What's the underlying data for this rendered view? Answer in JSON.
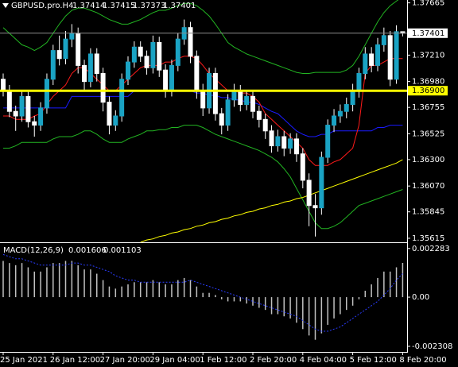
{
  "chart_data": [
    {
      "type": "candlestick",
      "title": "GBPUSD.pro.H4",
      "categories": [
        "25 Jan 2021",
        null,
        null,
        null,
        null,
        null,
        null,
        null,
        "26 Jan 12:00",
        null,
        null,
        null,
        null,
        null,
        null,
        null,
        "27 Jan 20:00",
        null,
        null,
        null,
        null,
        null,
        null,
        null,
        "29 Jan 04:00",
        null,
        null,
        null,
        null,
        null,
        null,
        null,
        "1 Feb 12:00",
        null,
        null,
        null,
        null,
        null,
        null,
        null,
        "2 Feb 20:00",
        null,
        null,
        null,
        null,
        null,
        null,
        null,
        "4 Feb 04:00",
        null,
        null,
        null,
        null,
        null,
        null,
        null,
        "5 Feb 12:00",
        null,
        null,
        null,
        null,
        null,
        null,
        null,
        "8 Feb 20:00"
      ],
      "open": [
        1.37,
        1.369,
        1.3672,
        1.3668,
        1.3685,
        1.3663,
        1.366,
        1.3675,
        1.37,
        1.3725,
        1.3718,
        1.3735,
        1.374,
        1.3712,
        1.3698,
        1.3722,
        1.3705,
        1.368,
        1.366,
        1.3668,
        1.37,
        1.3715,
        1.3728,
        1.372,
        1.371,
        1.3732,
        1.3708,
        1.369,
        1.3712,
        1.3735,
        1.3745,
        1.372,
        1.369,
        1.3675,
        1.3705,
        1.367,
        1.366,
        1.3682,
        1.369,
        1.3678,
        1.3685,
        1.3672,
        1.3665,
        1.3655,
        1.3642,
        1.365,
        1.364,
        1.3648,
        1.3635,
        1.3612,
        1.359,
        1.3588,
        1.3632,
        1.366,
        1.3668,
        1.3672,
        1.3678,
        1.369,
        1.3705,
        1.3722,
        1.3712,
        1.373,
        1.3738,
        1.37,
        1.37414
      ],
      "high": [
        1.3705,
        1.3695,
        1.3677,
        1.369,
        1.369,
        1.3668,
        1.368,
        1.3705,
        1.373,
        1.3738,
        1.3742,
        1.3748,
        1.3745,
        1.3717,
        1.3727,
        1.3727,
        1.371,
        1.3685,
        1.3673,
        1.3705,
        1.372,
        1.3733,
        1.3733,
        1.3725,
        1.3738,
        1.3737,
        1.3713,
        1.3717,
        1.374,
        1.3752,
        1.375,
        1.3725,
        1.3696,
        1.371,
        1.371,
        1.3675,
        1.3687,
        1.3696,
        1.3695,
        1.369,
        1.369,
        1.3677,
        1.367,
        1.366,
        1.3656,
        1.3655,
        1.3653,
        1.3653,
        1.364,
        1.3618,
        1.36,
        1.3637,
        1.3665,
        1.3674,
        1.3678,
        1.3684,
        1.3696,
        1.371,
        1.3728,
        1.3728,
        1.3736,
        1.3745,
        1.3742,
        1.3747,
        1.37415
      ],
      "low": [
        1.3685,
        1.3667,
        1.3655,
        1.3663,
        1.3658,
        1.365,
        1.3655,
        1.367,
        1.3695,
        1.3712,
        1.3713,
        1.3728,
        1.3705,
        1.369,
        1.3693,
        1.3698,
        1.3672,
        1.3652,
        1.3655,
        1.3663,
        1.3695,
        1.371,
        1.3715,
        1.3704,
        1.3705,
        1.3702,
        1.3684,
        1.3685,
        1.3707,
        1.373,
        1.3714,
        1.3683,
        1.3668,
        1.367,
        1.3664,
        1.3652,
        1.3655,
        1.3676,
        1.3672,
        1.3673,
        1.3666,
        1.3658,
        1.3648,
        1.3636,
        1.3637,
        1.3633,
        1.3635,
        1.3628,
        1.3605,
        1.3572,
        1.3563,
        1.3582,
        1.3627,
        1.3654,
        1.3662,
        1.3666,
        1.3672,
        1.3684,
        1.37,
        1.3706,
        1.3707,
        1.3724,
        1.3694,
        1.3696,
        1.37373
      ],
      "close": [
        1.369,
        1.3672,
        1.3668,
        1.3685,
        1.3663,
        1.366,
        1.3675,
        1.37,
        1.3725,
        1.3718,
        1.3735,
        1.374,
        1.3712,
        1.3698,
        1.3722,
        1.3705,
        1.368,
        1.366,
        1.3668,
        1.37,
        1.3715,
        1.3728,
        1.372,
        1.371,
        1.3732,
        1.3708,
        1.369,
        1.3712,
        1.3735,
        1.3745,
        1.372,
        1.369,
        1.3675,
        1.3705,
        1.367,
        1.366,
        1.3682,
        1.369,
        1.3678,
        1.3685,
        1.3672,
        1.3665,
        1.3655,
        1.3642,
        1.365,
        1.364,
        1.3648,
        1.3635,
        1.3612,
        1.359,
        1.3588,
        1.3632,
        1.366,
        1.3668,
        1.3672,
        1.3678,
        1.369,
        1.3705,
        1.3722,
        1.3712,
        1.373,
        1.3738,
        1.37,
        1.37414,
        1.37401
      ],
      "bull_color": "#1aa3c4",
      "bear_color": "#ffffff",
      "series": [
        {
          "color": "#22b422",
          "values": [
            1.3745,
            1.374,
            1.3735,
            1.373,
            1.3728,
            1.3725,
            1.3728,
            1.3732,
            1.374,
            1.3748,
            1.3755,
            1.376,
            1.3762,
            1.3762,
            1.376,
            1.3758,
            1.3755,
            1.3752,
            1.375,
            1.3748,
            1.3748,
            1.375,
            1.3752,
            1.3755,
            1.3758,
            1.376,
            1.376,
            1.3762,
            1.3764,
            1.3766,
            1.3766,
            1.3764,
            1.376,
            1.3755,
            1.3748,
            1.374,
            1.3732,
            1.3728,
            1.3725,
            1.3722,
            1.372,
            1.3718,
            1.3716,
            1.3714,
            1.3712,
            1.371,
            1.3708,
            1.3706,
            1.3705,
            1.3705,
            1.3706,
            1.3706,
            1.3706,
            1.3706,
            1.3706,
            1.3708,
            1.3712,
            1.372,
            1.373,
            1.374,
            1.375,
            1.3758,
            1.3764,
            1.3768,
            1.3772
          ]
        },
        {
          "color": "#22b422",
          "values": [
            1.364,
            1.364,
            1.3642,
            1.3645,
            1.3645,
            1.3645,
            1.3645,
            1.3645,
            1.3648,
            1.365,
            1.365,
            1.365,
            1.3652,
            1.3655,
            1.3655,
            1.3652,
            1.3648,
            1.3645,
            1.3645,
            1.3645,
            1.3648,
            1.365,
            1.3652,
            1.3655,
            1.3655,
            1.3656,
            1.3656,
            1.3658,
            1.3658,
            1.366,
            1.366,
            1.366,
            1.3658,
            1.3655,
            1.3652,
            1.365,
            1.3648,
            1.3646,
            1.3644,
            1.3642,
            1.364,
            1.3638,
            1.3635,
            1.3632,
            1.3628,
            1.3622,
            1.3615,
            1.3605,
            1.3595,
            1.3585,
            1.3575,
            1.357,
            1.357,
            1.3572,
            1.3575,
            1.358,
            1.3585,
            1.359,
            1.3592,
            1.3594,
            1.3596,
            1.3598,
            1.36,
            1.3602,
            1.3604
          ]
        },
        {
          "color": "#ffff00",
          "values": [
            null,
            null,
            null,
            null,
            null,
            null,
            null,
            null,
            null,
            null,
            null,
            null,
            null,
            null,
            null,
            null,
            null,
            null,
            null,
            null,
            null,
            null,
            1.3558,
            1.356,
            1.3561,
            1.3563,
            1.3564,
            1.3566,
            1.3567,
            1.3569,
            1.357,
            1.3572,
            1.3573,
            1.3575,
            1.3576,
            1.3578,
            1.3579,
            1.3581,
            1.3582,
            1.3584,
            1.3585,
            1.3587,
            1.3588,
            1.359,
            1.3591,
            1.3593,
            1.3594,
            1.3596,
            1.3597,
            1.3599,
            1.3601,
            1.3603,
            1.3605,
            1.3607,
            1.3609,
            1.3611,
            1.3613,
            1.3615,
            1.3617,
            1.3619,
            1.3621,
            1.3623,
            1.3625,
            1.3627,
            1.363
          ]
        },
        {
          "color": "#1a1aff",
          "values": [
            1.3675,
            1.3675,
            1.3675,
            1.3675,
            1.3675,
            1.3675,
            1.3675,
            1.3675,
            1.3675,
            1.3675,
            1.3675,
            1.3685,
            1.3685,
            1.3685,
            1.3685,
            1.3685,
            1.3685,
            1.3685,
            1.3685,
            1.3685,
            1.3685,
            1.369,
            1.369,
            1.369,
            1.369,
            1.369,
            1.369,
            1.369,
            1.369,
            1.369,
            1.369,
            1.3688,
            1.3688,
            1.3686,
            1.3686,
            1.3684,
            1.3684,
            1.3682,
            1.3682,
            1.368,
            1.368,
            1.3678,
            1.3675,
            1.3672,
            1.367,
            1.3665,
            1.366,
            1.3655,
            1.3652,
            1.365,
            1.365,
            1.3652,
            1.3652,
            1.3655,
            1.3655,
            1.3655,
            1.3655,
            1.3655,
            1.3655,
            1.3655,
            1.3658,
            1.3658,
            1.366,
            1.366,
            1.366
          ]
        },
        {
          "color": "#ff1a1a",
          "values": [
            1.3668,
            1.3668,
            1.3665,
            1.3665,
            1.3665,
            1.3668,
            1.367,
            1.3678,
            1.3685,
            1.369,
            1.3695,
            1.3705,
            1.371,
            1.371,
            1.3705,
            1.37,
            1.3695,
            1.369,
            1.369,
            1.3695,
            1.37,
            1.3705,
            1.371,
            1.3712,
            1.3712,
            1.3712,
            1.3715,
            1.3715,
            1.3718,
            1.372,
            1.372,
            1.3718,
            1.3712,
            1.3705,
            1.37,
            1.3695,
            1.369,
            1.369,
            1.3688,
            1.3688,
            1.3685,
            1.368,
            1.367,
            1.3665,
            1.366,
            1.3655,
            1.365,
            1.3645,
            1.364,
            1.363,
            1.3625,
            1.3625,
            1.3625,
            1.3628,
            1.363,
            1.3635,
            1.364,
            1.366,
            1.3705,
            1.3712,
            1.3712,
            1.3715,
            1.3718,
            1.3718,
            1.3718
          ]
        }
      ],
      "levels": [
        {
          "value": 1.369,
          "label": "1.36900",
          "color": "#ffff00"
        }
      ],
      "ylim": [
        1.3558,
        1.3769
      ],
      "yticks": [
        1.37665,
        {
          "value": 1.3721,
          "label": "1.37210"
        },
        {
          "value": 1.3698,
          "label": "1.36980"
        },
        1.36755,
        1.36525,
        {
          "value": 1.363,
          "label": "1.36300"
        },
        {
          "value": 1.3607,
          "label": "1.36070"
        },
        1.35845,
        1.35615
      ]
    },
    {
      "type": "macd",
      "title": "MACD(12,26,9)",
      "values": [
        0.0017,
        0.0016,
        0.0015,
        0.0016,
        0.0014,
        0.0012,
        0.0012,
        0.0014,
        0.0016,
        0.0016,
        0.0017,
        0.0017,
        0.0015,
        0.0013,
        0.0013,
        0.0011,
        0.0008,
        0.0005,
        0.0004,
        0.0005,
        0.0006,
        0.0007,
        0.0007,
        0.0007,
        0.0008,
        0.0007,
        0.0006,
        0.0006,
        0.0008,
        0.0009,
        0.0008,
        0.0005,
        0.0002,
        0.0002,
        0.0001,
        -0.0001,
        -0.0002,
        -0.0002,
        -0.0002,
        -0.0003,
        -0.0004,
        -0.0005,
        -0.0006,
        -0.0008,
        -0.0008,
        -0.0009,
        -0.001,
        -0.0012,
        -0.0015,
        -0.0018,
        -0.002,
        -0.0017,
        -0.0013,
        -0.001,
        -0.0008,
        -0.0006,
        -0.0004,
        -0.0001,
        0.0003,
        0.0006,
        0.0009,
        0.0012,
        0.0012,
        0.0014,
        0.001606
      ],
      "signal": [
        0.002,
        0.0019,
        0.0018,
        0.0018,
        0.0017,
        0.0016,
        0.0015,
        0.0015,
        0.0015,
        0.0015,
        0.0015,
        0.0016,
        0.0016,
        0.0015,
        0.0015,
        0.0014,
        0.0013,
        0.0012,
        0.001,
        0.0009,
        0.0008,
        0.0008,
        0.0007,
        0.0007,
        0.0007,
        0.0007,
        0.0007,
        0.0007,
        0.0007,
        0.0007,
        0.0008,
        0.0007,
        0.0006,
        0.0005,
        0.0004,
        0.0003,
        0.0002,
        0.0001,
        0,
        -0.0001,
        -0.0002,
        -0.0003,
        -0.0004,
        -0.0005,
        -0.0006,
        -0.0007,
        -0.0008,
        -0.0009,
        -0.0011,
        -0.0013,
        -0.0015,
        -0.0016,
        -0.0016,
        -0.0015,
        -0.0014,
        -0.0012,
        -0.001,
        -0.0008,
        -0.0006,
        -0.0004,
        -0.0002,
        0.0001,
        0.0004,
        0.0008,
        0.001103
      ],
      "color": "#c0c0c0",
      "signal_color": "#2a3cff",
      "ylim": [
        -0.00257,
        0.0025
      ],
      "yticks": [
        0.002283,
        {
          "value": 0,
          "label": "0.00"
        },
        -0.002308
      ]
    }
  ]
}
